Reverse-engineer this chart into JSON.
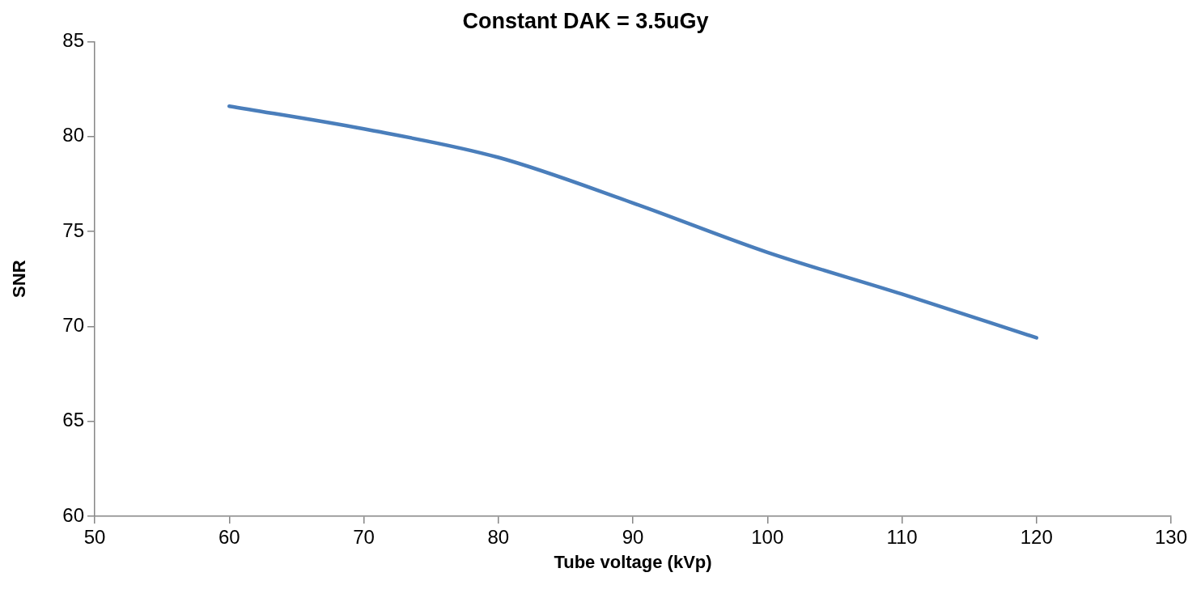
{
  "chart_data": {
    "type": "line",
    "title": "Constant DAK = 3.5uGy",
    "xlabel": "Tube voltage (kVp)",
    "ylabel": "SNR",
    "x": [
      60,
      70,
      80,
      90,
      100,
      110,
      120
    ],
    "series": [
      {
        "color": "#4a7ebb",
        "values": [
          81.6,
          80.4,
          78.9,
          76.5,
          73.9,
          71.7,
          69.4
        ]
      }
    ],
    "xlim": [
      50,
      130
    ],
    "xticks": [
      50,
      60,
      70,
      80,
      90,
      100,
      110,
      120,
      130
    ],
    "ylim": [
      60,
      85
    ],
    "yticks": [
      60,
      65,
      70,
      75,
      80,
      85
    ],
    "grid": false,
    "legend": false,
    "marker": "none",
    "line_style": "solid"
  }
}
